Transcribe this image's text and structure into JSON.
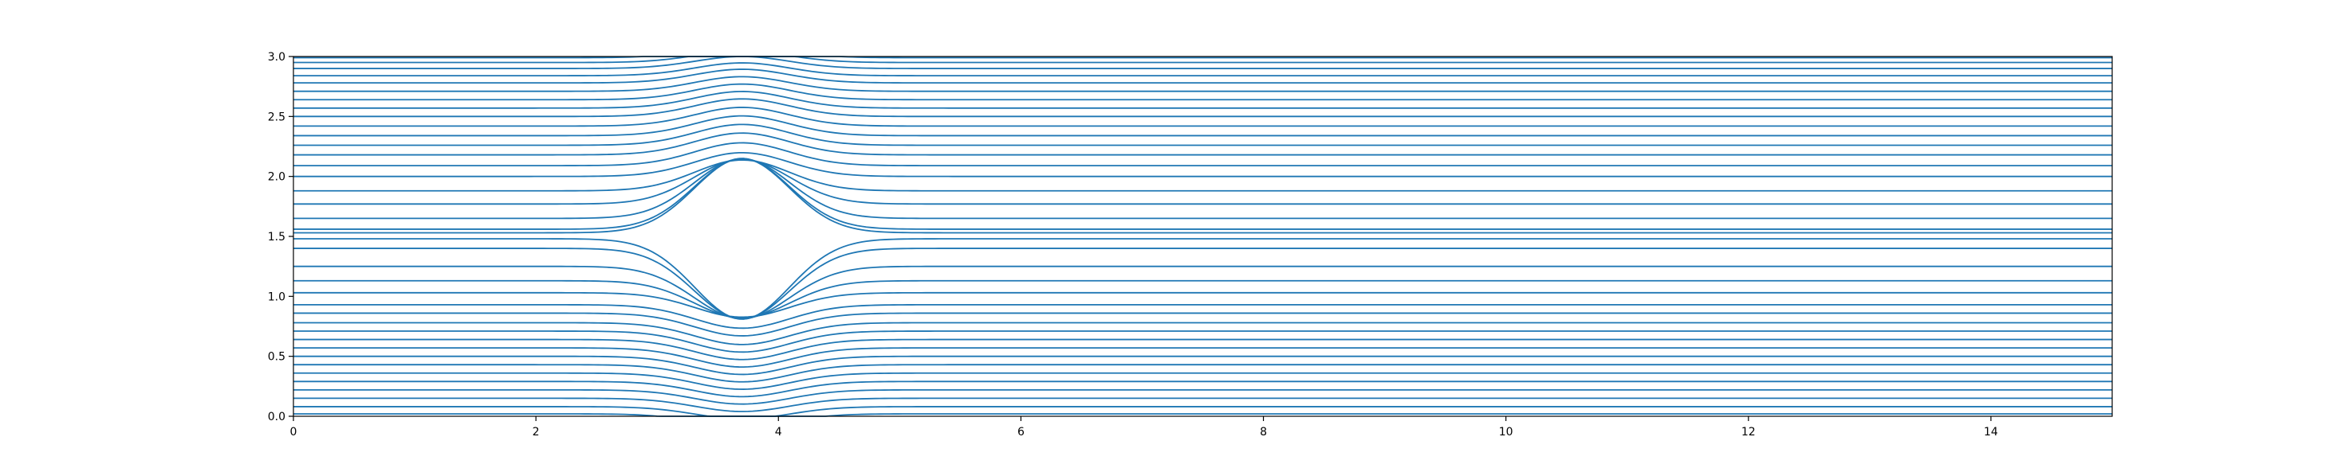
{
  "chart_data": {
    "type": "line",
    "title": "",
    "xlabel": "",
    "ylabel": "",
    "xlim": [
      0,
      15
    ],
    "ylim": [
      0,
      3
    ],
    "grid": false,
    "x_ticks": [
      "0",
      "2",
      "4",
      "6",
      "8",
      "10",
      "12",
      "14"
    ],
    "y_ticks": [
      "0.0",
      "0.5",
      "1.0",
      "1.5",
      "2.0",
      "2.5",
      "3.0"
    ],
    "obstacle": {
      "center_x": 3.7,
      "center_y": 1.48,
      "radius_x": 0.45,
      "radius_y": 0.45
    },
    "upstream_levels_below": [
      0.02,
      0.08,
      0.15,
      0.22,
      0.29,
      0.36,
      0.43,
      0.5,
      0.57,
      0.64,
      0.71,
      0.78,
      0.86,
      0.93,
      1.03,
      1.13,
      1.25,
      1.4,
      1.48
    ],
    "upstream_levels_above": [
      1.53,
      1.56,
      1.65,
      1.77,
      1.88,
      2.0,
      2.09,
      2.18,
      2.26,
      2.34,
      2.42,
      2.5,
      2.57,
      2.64,
      2.71,
      2.78,
      2.84,
      2.9,
      2.95,
      2.99
    ],
    "series_color": "#1f77b4"
  }
}
